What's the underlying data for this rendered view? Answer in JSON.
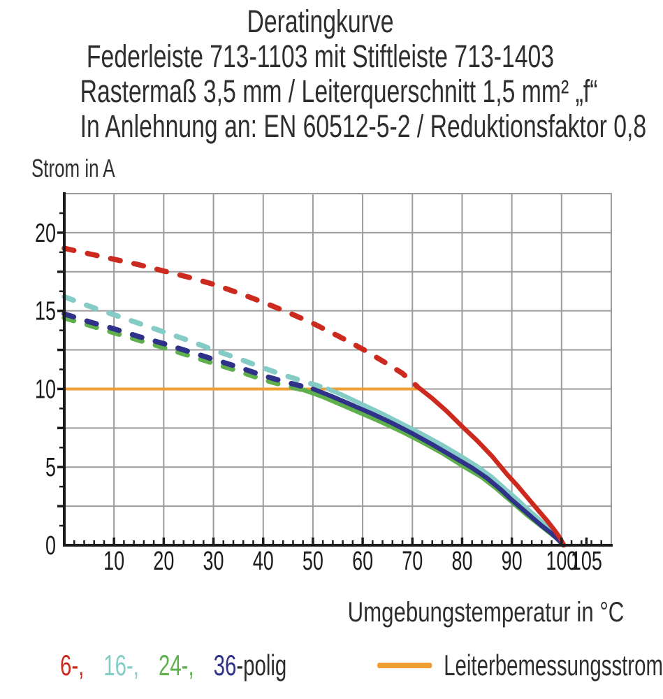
{
  "title": {
    "line1": "Deratingkurve",
    "line2": "Federleiste 713-1103 mit Stiftleiste 713-1403",
    "line3": "Rastermaß 3,5 mm / Leiterquerschnitt 1,5 mm² „f“",
    "line4": "In Anlehnung an: EN 60512-5-2 / Reduktionsfaktor 0,8"
  },
  "chart_data": {
    "type": "line",
    "title": "Deratingkurve",
    "subtitle": "Federleiste 713-1103 mit Stiftleiste 713-1403 / Rastermaß 3,5 mm / Leiterquerschnitt 1,5 mm² „f“ / In Anlehnung an: EN 60512-5-2 / Reduktionsfaktor 0,8",
    "xlabel": "Umgebungstemperatur in °C",
    "ylabel": "Strom in A",
    "xlim": [
      0,
      110
    ],
    "ylim": [
      0,
      22.5
    ],
    "grid": true,
    "x_gridline_step": 10,
    "y_gridline_step": 2.5,
    "x_minor_tick_step": 2,
    "y_minor_tick_step": 1.25,
    "x_ticks_labeled": [
      10,
      20,
      30,
      40,
      50,
      60,
      70,
      80,
      90,
      100,
      105
    ],
    "y_ticks_labeled": [
      0,
      5,
      10,
      15,
      20
    ],
    "legend_position": "bottom",
    "reference_line": {
      "label": "Leiterbemessungsstrom",
      "y": 10,
      "x_start": 0,
      "x_end": 72,
      "color": "#f09d32"
    },
    "series": [
      {
        "name": "6-polig",
        "color": "#cd2a1f",
        "z": 4,
        "dashed_points": [
          [
            0,
            19.0
          ],
          [
            5,
            18.65
          ],
          [
            10,
            18.3
          ],
          [
            15,
            17.95
          ],
          [
            20,
            17.55
          ],
          [
            25,
            17.15
          ],
          [
            30,
            16.7
          ],
          [
            35,
            16.15
          ],
          [
            40,
            15.55
          ],
          [
            45,
            14.9
          ],
          [
            50,
            14.2
          ],
          [
            55,
            13.4
          ],
          [
            60,
            12.55
          ],
          [
            65,
            11.6
          ],
          [
            68,
            11.0
          ],
          [
            71,
            10.15
          ]
        ],
        "solid_points": [
          [
            71,
            10.15
          ],
          [
            74,
            9.4
          ],
          [
            77,
            8.55
          ],
          [
            80,
            7.6
          ],
          [
            83,
            6.7
          ],
          [
            86,
            5.7
          ],
          [
            89,
            4.55
          ],
          [
            91,
            3.85
          ],
          [
            93,
            3.1
          ],
          [
            95,
            2.35
          ],
          [
            97,
            1.6
          ],
          [
            98.5,
            1.0
          ],
          [
            99.5,
            0.55
          ],
          [
            100.5,
            0
          ]
        ]
      },
      {
        "name": "16-polig",
        "color": "#85ccc6",
        "z": 1,
        "dashed_points": [
          [
            0,
            15.9
          ],
          [
            5,
            15.3
          ],
          [
            10,
            14.75
          ],
          [
            15,
            14.2
          ],
          [
            20,
            13.65
          ],
          [
            25,
            13.1
          ],
          [
            30,
            12.5
          ],
          [
            35,
            11.95
          ],
          [
            40,
            11.35
          ],
          [
            44,
            10.9
          ],
          [
            48,
            10.5
          ],
          [
            53,
            10.0
          ]
        ],
        "solid_points": [
          [
            53,
            10.0
          ],
          [
            56,
            9.6
          ],
          [
            60,
            9.0
          ],
          [
            64,
            8.4
          ],
          [
            68,
            7.75
          ],
          [
            72,
            7.1
          ],
          [
            76,
            6.4
          ],
          [
            80,
            5.65
          ],
          [
            83,
            5.05
          ],
          [
            86,
            4.35
          ],
          [
            89,
            3.5
          ],
          [
            91,
            2.95
          ],
          [
            93,
            2.35
          ],
          [
            95,
            1.8
          ],
          [
            97,
            1.2
          ],
          [
            98.5,
            0.75
          ],
          [
            99.5,
            0.4
          ],
          [
            100.4,
            0
          ]
        ]
      },
      {
        "name": "24-polig",
        "color": "#5fb04d",
        "z": 2,
        "dashed_points": [
          [
            0,
            14.55
          ],
          [
            5,
            14.08
          ],
          [
            10,
            13.6
          ],
          [
            15,
            13.12
          ],
          [
            20,
            12.65
          ],
          [
            25,
            12.15
          ],
          [
            30,
            11.65
          ],
          [
            35,
            11.15
          ],
          [
            40,
            10.6
          ],
          [
            44,
            10.25
          ],
          [
            48,
            9.95
          ]
        ],
        "solid_points": [
          [
            48,
            9.95
          ],
          [
            52,
            9.5
          ],
          [
            56,
            8.95
          ],
          [
            60,
            8.4
          ],
          [
            64,
            7.85
          ],
          [
            68,
            7.25
          ],
          [
            72,
            6.6
          ],
          [
            76,
            5.9
          ],
          [
            80,
            5.1
          ],
          [
            84,
            4.35
          ],
          [
            87,
            3.6
          ],
          [
            89,
            3.05
          ],
          [
            91,
            2.5
          ],
          [
            93,
            1.95
          ],
          [
            95,
            1.45
          ],
          [
            97,
            0.95
          ],
          [
            99,
            0.45
          ],
          [
            100.3,
            0
          ]
        ]
      },
      {
        "name": "36-polig",
        "color": "#2f3288",
        "z": 3,
        "dashed_points": [
          [
            0,
            14.8
          ],
          [
            5,
            14.3
          ],
          [
            10,
            13.85
          ],
          [
            15,
            13.35
          ],
          [
            20,
            12.9
          ],
          [
            25,
            12.4
          ],
          [
            30,
            11.9
          ],
          [
            35,
            11.4
          ],
          [
            40,
            10.85
          ],
          [
            45,
            10.4
          ],
          [
            50,
            10.0
          ]
        ],
        "solid_points": [
          [
            50,
            10.0
          ],
          [
            54,
            9.5
          ],
          [
            58,
            8.95
          ],
          [
            62,
            8.4
          ],
          [
            66,
            7.8
          ],
          [
            70,
            7.15
          ],
          [
            74,
            6.45
          ],
          [
            78,
            5.7
          ],
          [
            82,
            4.95
          ],
          [
            85,
            4.3
          ],
          [
            88,
            3.5
          ],
          [
            90,
            2.9
          ],
          [
            92,
            2.35
          ],
          [
            94,
            1.8
          ],
          [
            96,
            1.25
          ],
          [
            98,
            0.75
          ],
          [
            99.5,
            0.3
          ],
          [
            100.4,
            0
          ]
        ]
      }
    ],
    "legend_items": [
      {
        "label": "6-,",
        "color": "#cd2a1f"
      },
      {
        "label": "16-,",
        "color": "#85ccc6"
      },
      {
        "label": "24-,",
        "color": "#5fb04d"
      },
      {
        "label": "36",
        "color": "#2f3288",
        "suffix": "-polig",
        "suffix_color": "#2b2b2b"
      }
    ]
  },
  "colors": {
    "grid": "#9c9c9c",
    "axis": "#1b1b1b",
    "tick_label": "#1b1b1b",
    "text": "#2e2e2e"
  }
}
